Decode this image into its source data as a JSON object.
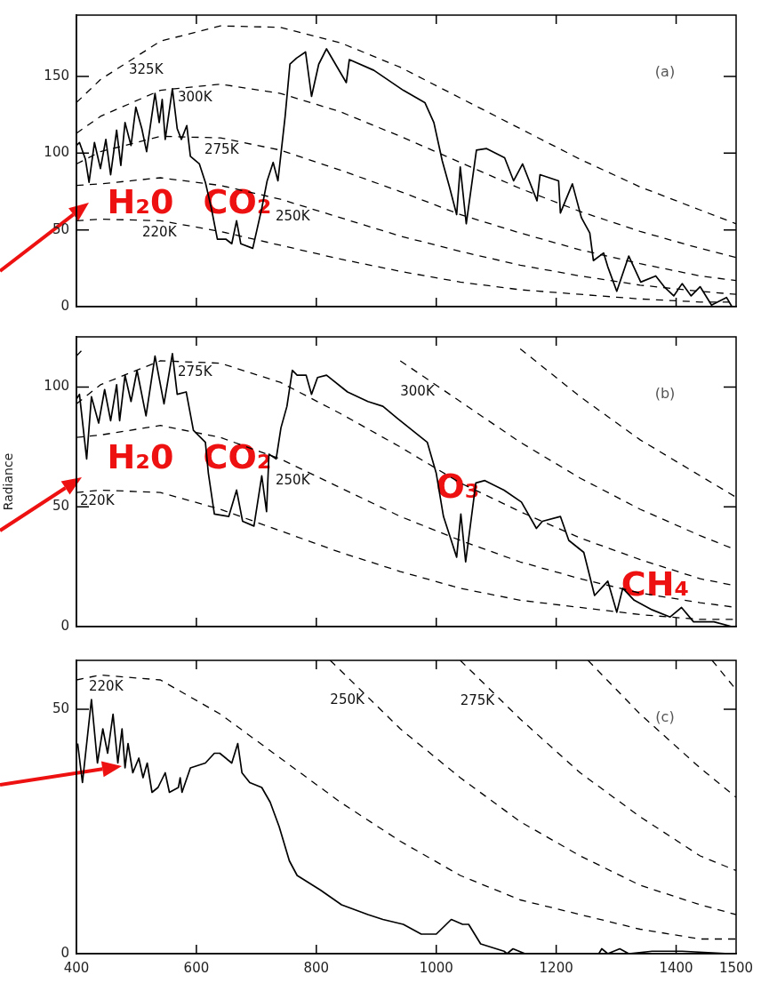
{
  "chart_data": [
    {
      "type": "line",
      "title": "(a)",
      "xlim": [
        400,
        1500
      ],
      "xticks": [
        400,
        600,
        800,
        1000,
        1200,
        1400,
        1500
      ],
      "ylim": [
        0,
        190
      ],
      "yticks": [
        0,
        50,
        100,
        150
      ],
      "tick_labels": "y",
      "marker": "none",
      "series": [
        {
          "color": "#000000",
          "line_style": "solid",
          "x": [
            400,
            405,
            415,
            421,
            430,
            440,
            449,
            457,
            467,
            474,
            481,
            491,
            499,
            509,
            517,
            531,
            538,
            543,
            548,
            560,
            568,
            575,
            584,
            590,
            605,
            615,
            625,
            635,
            649,
            659,
            667,
            674,
            694,
            709,
            718,
            728,
            736,
            748,
            756,
            767,
            782,
            792,
            804,
            817,
            850,
            855,
            896,
            945,
            981,
            996,
            1010,
            1022,
            1034,
            1040,
            1050,
            1067,
            1084,
            1114,
            1129,
            1144,
            1168,
            1173,
            1204,
            1207,
            1227,
            1242,
            1256,
            1262,
            1279,
            1286,
            1301,
            1321,
            1341,
            1366,
            1380,
            1396,
            1410,
            1425,
            1440,
            1459,
            1484,
            1493
          ],
          "values": [
            105,
            107,
            96,
            81,
            107,
            90,
            109,
            86,
            115,
            92,
            120,
            105,
            130,
            116,
            101,
            139,
            120,
            135,
            109,
            142,
            116,
            109,
            118,
            98,
            93,
            81,
            64,
            44,
            44,
            41,
            56,
            41,
            38,
            64,
            82,
            94,
            82,
            124,
            158,
            162,
            166,
            137,
            158,
            168,
            146,
            161,
            154,
            141,
            133,
            120,
            95,
            78,
            60,
            91,
            54,
            102,
            103,
            97,
            82,
            93,
            69,
            86,
            82,
            61,
            80,
            58,
            48,
            30,
            35,
            26,
            10,
            33,
            16,
            20,
            13,
            7,
            15,
            7,
            13,
            1,
            6,
            0
          ]
        },
        {
          "name": "325K",
          "color": "#000000",
          "line_style": "dashed",
          "x": [
            400,
            440,
            540,
            640,
            740,
            840,
            940,
            1040,
            1140,
            1240,
            1340,
            1440,
            1500
          ],
          "values": [
            133,
            148,
            173,
            183,
            182,
            172,
            156,
            136,
            116,
            96,
            78,
            63,
            54
          ]
        },
        {
          "name": "300K",
          "color": "#000000",
          "line_style": "dashed",
          "x": [
            400,
            440,
            540,
            640,
            740,
            840,
            940,
            1040,
            1140,
            1240,
            1340,
            1440,
            1500
          ],
          "values": [
            113,
            124,
            141,
            145,
            139,
            127,
            111,
            94,
            77,
            62,
            49,
            38,
            32
          ]
        },
        {
          "name": "275K",
          "color": "#000000",
          "line_style": "dashed",
          "x": [
            400,
            440,
            540,
            640,
            740,
            840,
            940,
            1040,
            1140,
            1240,
            1340,
            1440,
            1500
          ],
          "values": [
            93,
            101,
            111,
            110,
            102,
            89,
            75,
            60,
            48,
            37,
            28,
            20,
            17
          ]
        },
        {
          "name": "250K",
          "color": "#000000",
          "line_style": "dashed",
          "x": [
            400,
            440,
            540,
            640,
            740,
            840,
            940,
            1040,
            1140,
            1240,
            1340,
            1440,
            1500
          ],
          "values": [
            79,
            80,
            84,
            79,
            70,
            58,
            46,
            36,
            27,
            20,
            14,
            10,
            8
          ]
        },
        {
          "name": "220K",
          "color": "#000000",
          "line_style": "dashed",
          "x": [
            400,
            440,
            540,
            640,
            740,
            840,
            940,
            1040,
            1140,
            1240,
            1340,
            1440,
            1500
          ],
          "values": [
            56,
            57,
            56,
            49,
            40,
            31,
            23,
            16,
            11,
            8,
            5,
            3,
            3
          ]
        }
      ],
      "annotations": [
        "H₂0",
        "CO₂"
      ]
    },
    {
      "type": "line",
      "title": "(b)",
      "ylabel": "Radiance",
      "xlim": [
        400,
        1500
      ],
      "xticks": [
        400,
        600,
        800,
        1000,
        1200,
        1400,
        1500
      ],
      "ylim": [
        0,
        121
      ],
      "yticks": [
        0,
        50,
        100
      ],
      "tick_labels": "y",
      "marker": "none",
      "series": [
        {
          "color": "#000000",
          "line_style": "solid",
          "x": [
            400,
            405,
            417,
            425,
            437,
            447,
            457,
            467,
            472,
            481,
            491,
            501,
            516,
            531,
            546,
            560,
            568,
            583,
            595,
            615,
            620,
            630,
            654,
            667,
            677,
            696,
            709,
            717,
            721,
            733,
            741,
            751,
            760,
            768,
            783,
            792,
            802,
            817,
            852,
            886,
            911,
            935,
            985,
            1000,
            1012,
            1034,
            1041,
            1049,
            1066,
            1081,
            1113,
            1142,
            1167,
            1177,
            1207,
            1221,
            1246,
            1264,
            1286,
            1301,
            1311,
            1330,
            1360,
            1390,
            1409,
            1429,
            1463,
            1493
          ],
          "values": [
            95,
            97,
            70,
            96,
            85,
            99,
            86,
            101,
            86,
            105,
            94,
            107,
            88,
            113,
            93,
            114,
            97,
            98,
            82,
            77,
            64,
            47,
            46,
            57,
            44,
            42,
            63,
            48,
            72,
            70,
            83,
            92,
            107,
            105,
            105,
            97,
            104,
            105,
            98,
            94,
            92,
            87,
            77,
            64,
            46,
            29,
            47,
            27,
            60,
            61,
            57,
            52,
            41,
            44,
            46,
            36,
            31,
            13,
            19,
            6,
            16,
            11,
            7,
            4,
            8,
            2,
            2,
            0
          ]
        },
        {
          "color": "#000000",
          "line_style": "dashed",
          "x": [
            1140,
            1240,
            1340,
            1440,
            1500
          ],
          "values": [
            116,
            96,
            78,
            63,
            54
          ]
        },
        {
          "name": "300K",
          "color": "#000000",
          "line_style": "dashed",
          "x": [
            400,
            415,
            650,
            940,
            1040,
            1140,
            1240,
            1340,
            1440,
            1500
          ],
          "values": [
            113,
            117,
            null,
            111,
            94,
            77,
            62,
            49,
            38,
            32
          ]
        },
        {
          "name": "275K",
          "color": "#000000",
          "line_style": "dashed",
          "x": [
            400,
            440,
            540,
            640,
            740,
            840,
            940,
            1040,
            1140,
            1240,
            1340,
            1440,
            1500
          ],
          "values": [
            93,
            101,
            111,
            110,
            102,
            89,
            75,
            60,
            48,
            37,
            28,
            20,
            17
          ]
        },
        {
          "name": "250K",
          "color": "#000000",
          "line_style": "dashed",
          "x": [
            400,
            440,
            540,
            640,
            740,
            840,
            940,
            1040,
            1140,
            1240,
            1340,
            1440,
            1500
          ],
          "values": [
            79,
            80,
            84,
            79,
            70,
            58,
            46,
            36,
            27,
            20,
            14,
            10,
            8
          ]
        },
        {
          "name": "220K",
          "color": "#000000",
          "line_style": "dashed",
          "x": [
            400,
            440,
            540,
            640,
            740,
            840,
            940,
            1040,
            1140,
            1240,
            1340,
            1440,
            1500
          ],
          "values": [
            56,
            57,
            56,
            49,
            40,
            31,
            23,
            16,
            11,
            8,
            5,
            3,
            3
          ]
        }
      ],
      "annotations": [
        "H₂0",
        "CO₂",
        "O₃",
        "CH₄"
      ]
    },
    {
      "type": "line",
      "title": "(c)",
      "xlim": [
        400,
        1500
      ],
      "xticks": [
        400,
        600,
        800,
        1000,
        1200,
        1400,
        1500
      ],
      "ylim": [
        0,
        60
      ],
      "yticks": [
        0,
        50
      ],
      "marker": "none",
      "series": [
        {
          "color": "#000000",
          "line_style": "solid",
          "x": [
            402,
            410,
            425,
            435,
            444,
            452,
            461,
            469,
            476,
            481,
            486,
            494,
            504,
            511,
            518,
            526,
            536,
            548,
            555,
            570,
            573,
            576,
            590,
            615,
            630,
            639,
            659,
            669,
            676,
            689,
            709,
            723,
            738,
            755,
            768,
            807,
            842,
            886,
            911,
            945,
            975,
            1000,
            1025,
            1044,
            1054,
            1074,
            1113,
            1118,
            1128,
            1148,
            1271,
            1276,
            1286,
            1306,
            1321,
            1360,
            1410,
            1489
          ],
          "values": [
            43,
            35,
            52,
            39,
            46,
            41,
            49,
            39,
            46,
            38,
            43,
            37,
            40,
            36,
            39,
            33,
            34,
            37,
            33,
            34,
            36,
            33,
            38,
            39,
            41,
            41,
            39,
            43,
            37,
            35,
            34,
            31,
            26,
            19,
            16,
            13,
            10,
            8,
            7,
            6,
            4,
            4,
            7,
            6,
            6,
            2,
            0.5,
            0,
            1,
            0,
            0,
            1,
            0,
            1,
            0,
            0.5,
            0.5,
            0
          ]
        },
        {
          "color": "#000000",
          "line_style": "dashed",
          "x": [
            1460,
            1500
          ],
          "values": [
            60,
            54
          ]
        },
        {
          "color": "#000000",
          "line_style": "dashed",
          "x": [
            1253,
            1340,
            1440,
            1500
          ],
          "values": [
            60,
            49,
            38,
            32
          ]
        },
        {
          "name": "275K",
          "color": "#000000",
          "line_style": "dashed",
          "x": [
            1040,
            1140,
            1240,
            1340,
            1440,
            1500
          ],
          "values": [
            60,
            48,
            37,
            28,
            20,
            17
          ]
        },
        {
          "name": "250K",
          "color": "#000000",
          "line_style": "dashed",
          "x": [
            823,
            840,
            940,
            1040,
            1140,
            1240,
            1340,
            1440,
            1500
          ],
          "values": [
            60,
            58,
            46,
            36,
            27,
            20,
            14,
            10,
            8
          ]
        },
        {
          "name": "220K",
          "color": "#000000",
          "line_style": "dashed",
          "x": [
            400,
            440,
            540,
            640,
            740,
            840,
            940,
            1040,
            1140,
            1240,
            1340,
            1440,
            1500
          ],
          "values": [
            56,
            57,
            56,
            49,
            40,
            31,
            23,
            16,
            11,
            8,
            5,
            3,
            3
          ]
        }
      ]
    }
  ]
}
